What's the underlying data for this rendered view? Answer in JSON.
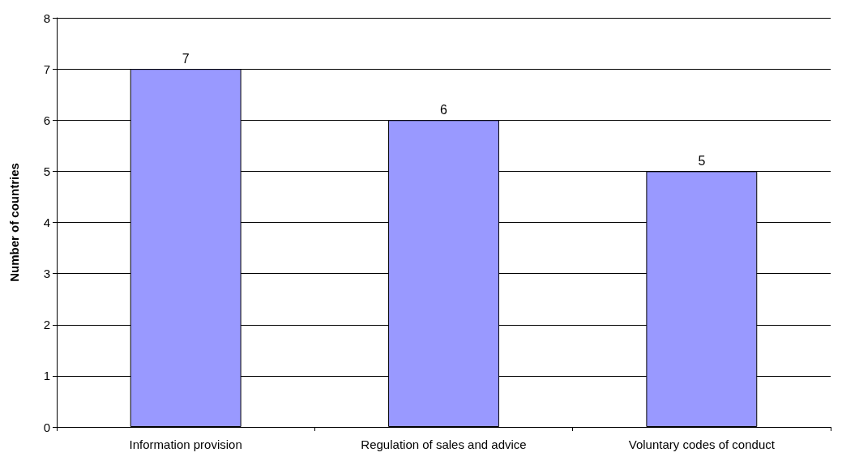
{
  "chart_data": {
    "type": "bar",
    "ylabel": "Number of countries",
    "categories": [
      "Information provision",
      "Regulation of sales and advice",
      "Voluntary codes of conduct"
    ],
    "values": [
      7,
      6,
      5
    ],
    "color": "#9999ff",
    "ylim": [
      0,
      8
    ],
    "yticks": [
      0,
      1,
      2,
      3,
      4,
      5,
      6,
      7,
      8
    ],
    "grid": "y",
    "data_labels": true
  }
}
